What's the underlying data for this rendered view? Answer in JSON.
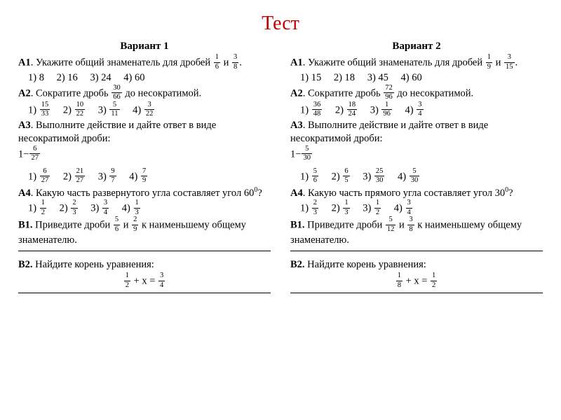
{
  "title": "Тест",
  "variants": [
    {
      "heading": "Вариант 1",
      "A1": {
        "label": "A1",
        "text_a": ". Укажите общий знаменатель для дробей ",
        "frac1": {
          "n": "1",
          "d": "6"
        },
        "and": " и ",
        "frac2": {
          "n": "3",
          "d": "8"
        },
        "tail": ".",
        "opts": [
          "1)  8",
          "2) 16",
          "3) 24",
          "4) 60"
        ]
      },
      "A2": {
        "label": "A2",
        "text_a": ". Сократите дробь ",
        "frac": {
          "n": "30",
          "d": "66"
        },
        "text_b": " до несократимой.",
        "opts": [
          {
            "k": "1)",
            "n": "15",
            "d": "33"
          },
          {
            "k": "2)",
            "n": "10",
            "d": "22"
          },
          {
            "k": "3)",
            "n": "5",
            "d": "11"
          },
          {
            "k": "4)",
            "n": "3",
            "d": "22"
          }
        ]
      },
      "A3": {
        "label": "A3",
        "text_a": ". Выполните действие и дайте ответ в виде несократимой дроби:",
        "expr_lead": "1−",
        "expr_frac": {
          "n": "6",
          "d": "27"
        },
        "opts": [
          {
            "k": "1)",
            "n": "6",
            "d": "27"
          },
          {
            "k": "2)",
            "n": "21",
            "d": "27"
          },
          {
            "k": "3)",
            "n": "9",
            "d": "7"
          },
          {
            "k": "4)",
            "n": "7",
            "d": "9"
          }
        ]
      },
      "A4": {
        "label": "A4",
        "text_a": ". Какую часть развернутого угла составляет угол 60",
        "deg": "0",
        "tail": "?",
        "opts": [
          {
            "k": "1)",
            "n": "1",
            "d": "2"
          },
          {
            "k": "2)",
            "n": "2",
            "d": "3"
          },
          {
            "k": "3)",
            "n": "3",
            "d": "4"
          },
          {
            "k": "4)",
            "n": "1",
            "d": "3"
          }
        ]
      },
      "B1": {
        "label": "B1.",
        "text_a": " Приведите дроби ",
        "frac1": {
          "n": "5",
          "d": "6"
        },
        "and": " и ",
        "frac2": {
          "n": "2",
          "d": "9"
        },
        "text_b": " к наименьшему общему знаменателю."
      },
      "B2": {
        "label": "B2.",
        "text_a": " Найдите корень уравнения:",
        "lhs": {
          "n": "1",
          "d": "2"
        },
        "mid": "+  x =",
        "rhs": {
          "n": "3",
          "d": "4"
        }
      }
    },
    {
      "heading": "Вариант 2",
      "A1": {
        "label": "A1",
        "text_a": ". Укажите общий знаменатель для дробей ",
        "frac1": {
          "n": "1",
          "d": "9"
        },
        "and": " и ",
        "frac2": {
          "n": "3",
          "d": "15"
        },
        "tail": ".",
        "opts": [
          "1)  15",
          "2) 18",
          "3) 45",
          "4) 60"
        ]
      },
      "A2": {
        "label": "A2",
        "text_a": ". Сократите дробь ",
        "frac": {
          "n": "72",
          "d": "96"
        },
        "text_b": " до несократимой.",
        "opts": [
          {
            "k": "1)",
            "n": "36",
            "d": "48"
          },
          {
            "k": "2)",
            "n": "18",
            "d": "24"
          },
          {
            "k": "3)",
            "n": "1",
            "d": "96"
          },
          {
            "k": "4)",
            "n": "3",
            "d": "4"
          }
        ]
      },
      "A3": {
        "label": "A3",
        "text_a": ". Выполните действие и дайте ответ в виде несократимой дроби:",
        "expr_lead": "1−",
        "expr_frac": {
          "n": "5",
          "d": "30"
        },
        "opts": [
          {
            "k": "1)",
            "n": "5",
            "d": "6"
          },
          {
            "k": "2)",
            "n": "6",
            "d": "5"
          },
          {
            "k": "3)",
            "n": "25",
            "d": "30"
          },
          {
            "k": "4)",
            "n": "5",
            "d": "30"
          }
        ]
      },
      "A4": {
        "label": "A4",
        "text_a": ". Какую часть  прямого угла составляет угол 30",
        "deg": "0",
        "tail": "?",
        "opts": [
          {
            "k": "1)",
            "n": "2",
            "d": "3"
          },
          {
            "k": "2)",
            "n": "1",
            "d": "3"
          },
          {
            "k": "3)",
            "n": "1",
            "d": "2"
          },
          {
            "k": "4)",
            "n": "3",
            "d": "4"
          }
        ]
      },
      "B1": {
        "label": "B1.",
        "text_a": " Приведите дроби ",
        "frac1": {
          "n": "5",
          "d": "12"
        },
        "and": " и ",
        "frac2": {
          "n": "3",
          "d": "8"
        },
        "text_b": " к наименьшему общему знаменателю."
      },
      "B2": {
        "label": "B2.",
        "text_a": " Найдите корень уравнения:",
        "lhs": {
          "n": "1",
          "d": "8"
        },
        "mid": "+  x =",
        "rhs": {
          "n": "1",
          "d": "2"
        }
      }
    }
  ]
}
